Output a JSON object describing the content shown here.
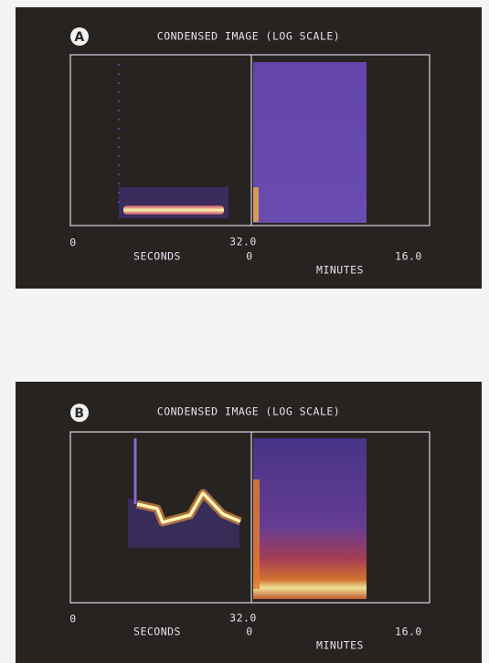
{
  "panels": [
    {
      "label": "A",
      "title": "CONDENSED IMAGE (LOG SCALE)",
      "left_axis": {
        "start": "0",
        "end": "32.0",
        "unit": "SECONDS"
      },
      "right_axis": {
        "start": "0",
        "end": "16.0",
        "unit": "MINUTES"
      }
    },
    {
      "label": "B",
      "title": "CONDENSED IMAGE (LOG SCALE)",
      "left_axis": {
        "start": "0",
        "end": "32.0",
        "unit": "SECONDS"
      },
      "right_axis": {
        "start": "0",
        "end": "16.0",
        "unit": "MINUTES"
      }
    }
  ]
}
